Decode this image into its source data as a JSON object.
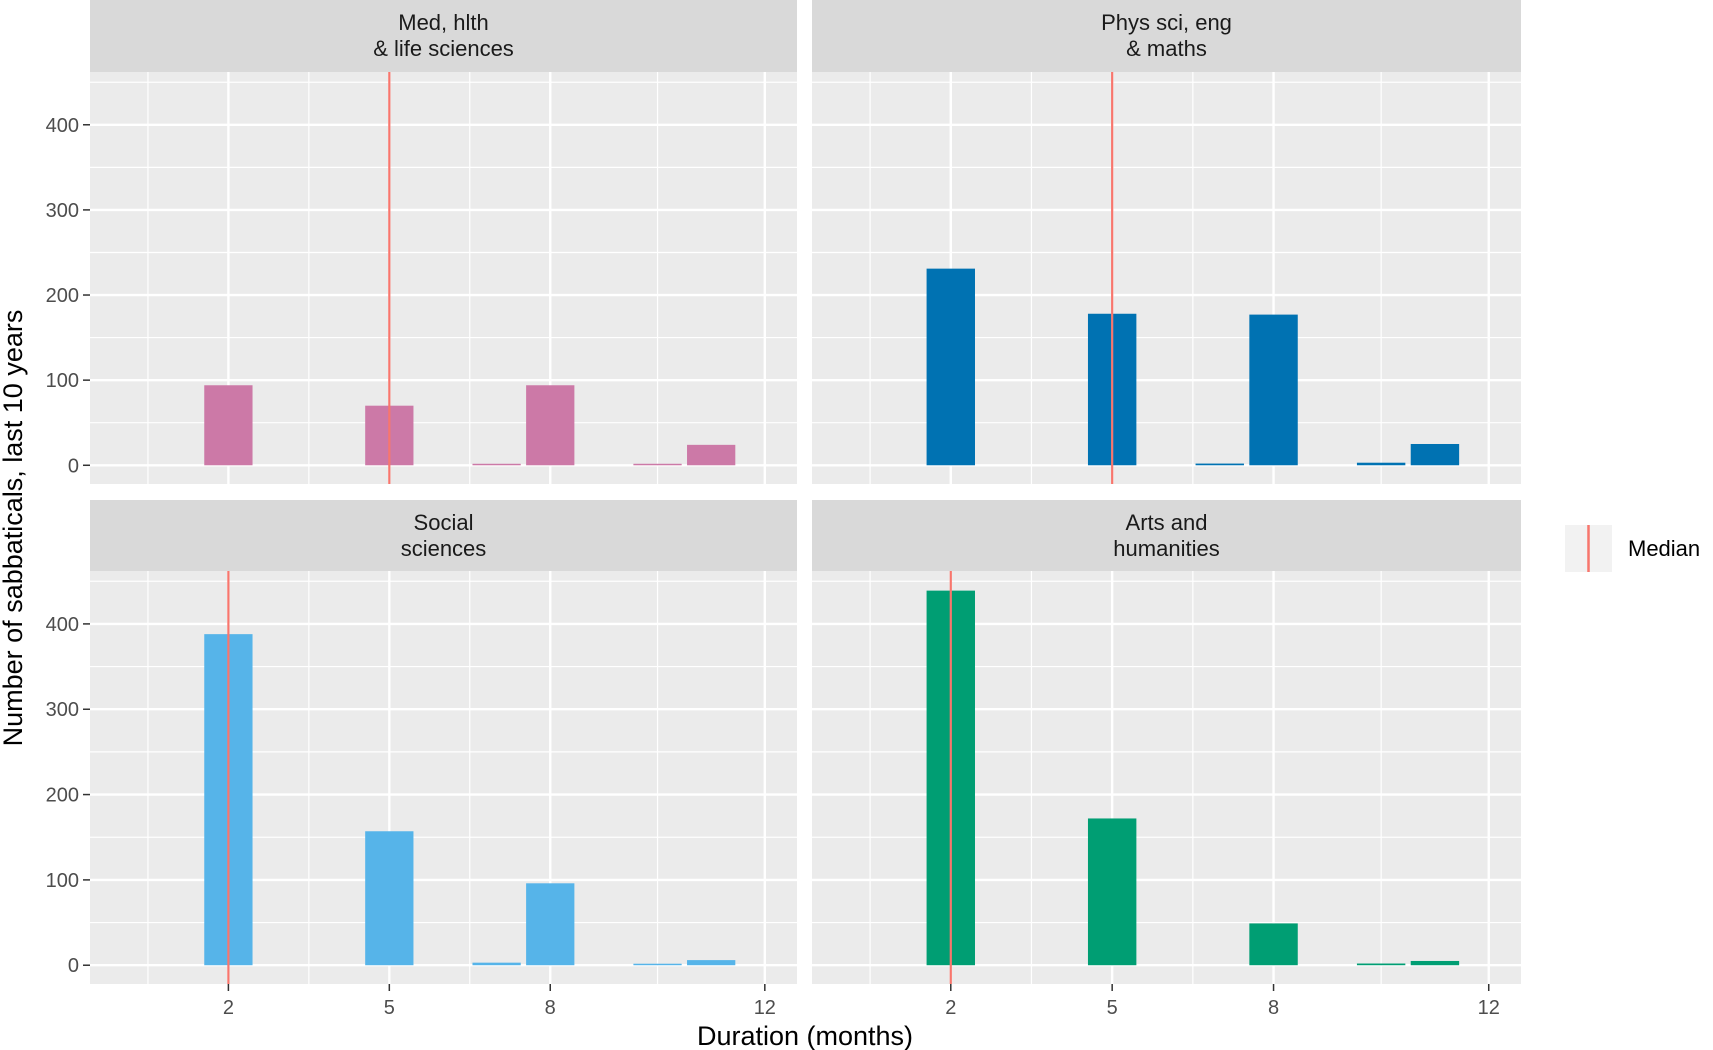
{
  "chart_data": {
    "type": "bar",
    "layout": "facet-grid 2x2",
    "xlabel": "Duration (months)",
    "ylabel": "Number of sabbaticals, last 10 years",
    "x_ticks": [
      2,
      5,
      8,
      12
    ],
    "y_ticks": [
      0,
      100,
      200,
      300,
      400
    ],
    "xlim": [
      -0.58,
      12.6
    ],
    "ylim": [
      -22,
      462
    ],
    "grid": true,
    "legend": {
      "position": "right",
      "entries": [
        {
          "label": "Median",
          "color": "#F8766D"
        }
      ]
    },
    "median_color": "#F8766D",
    "panels": [
      {
        "title": "Med, hlth\n& life sciences",
        "title_lines": [
          "Med, hlth",
          "& life sciences"
        ],
        "color": "#CC79A7",
        "median": 5,
        "x": [
          2,
          5,
          7,
          8,
          10,
          11
        ],
        "values": [
          94,
          70,
          1,
          94,
          1,
          24
        ]
      },
      {
        "title": "Phys sci, eng\n& maths",
        "title_lines": [
          "Phys sci, eng",
          "& maths"
        ],
        "color": "#0072B2",
        "median": 5,
        "x": [
          2,
          5,
          7,
          8,
          10,
          11
        ],
        "values": [
          231,
          178,
          2,
          177,
          3,
          25
        ]
      },
      {
        "title": "Social\nsciences",
        "title_lines": [
          "Social",
          "sciences"
        ],
        "color": "#56B4E9",
        "median": 2,
        "x": [
          2,
          5,
          7,
          8,
          10,
          11
        ],
        "values": [
          388,
          157,
          3,
          96,
          1,
          6
        ]
      },
      {
        "title": "Arts and\nhumanities",
        "title_lines": [
          "Arts and",
          "humanities"
        ],
        "color": "#009E73",
        "median": 2,
        "x": [
          2,
          5,
          7,
          8,
          10,
          11
        ],
        "values": [
          439,
          172,
          0,
          49,
          2,
          5
        ]
      }
    ]
  }
}
